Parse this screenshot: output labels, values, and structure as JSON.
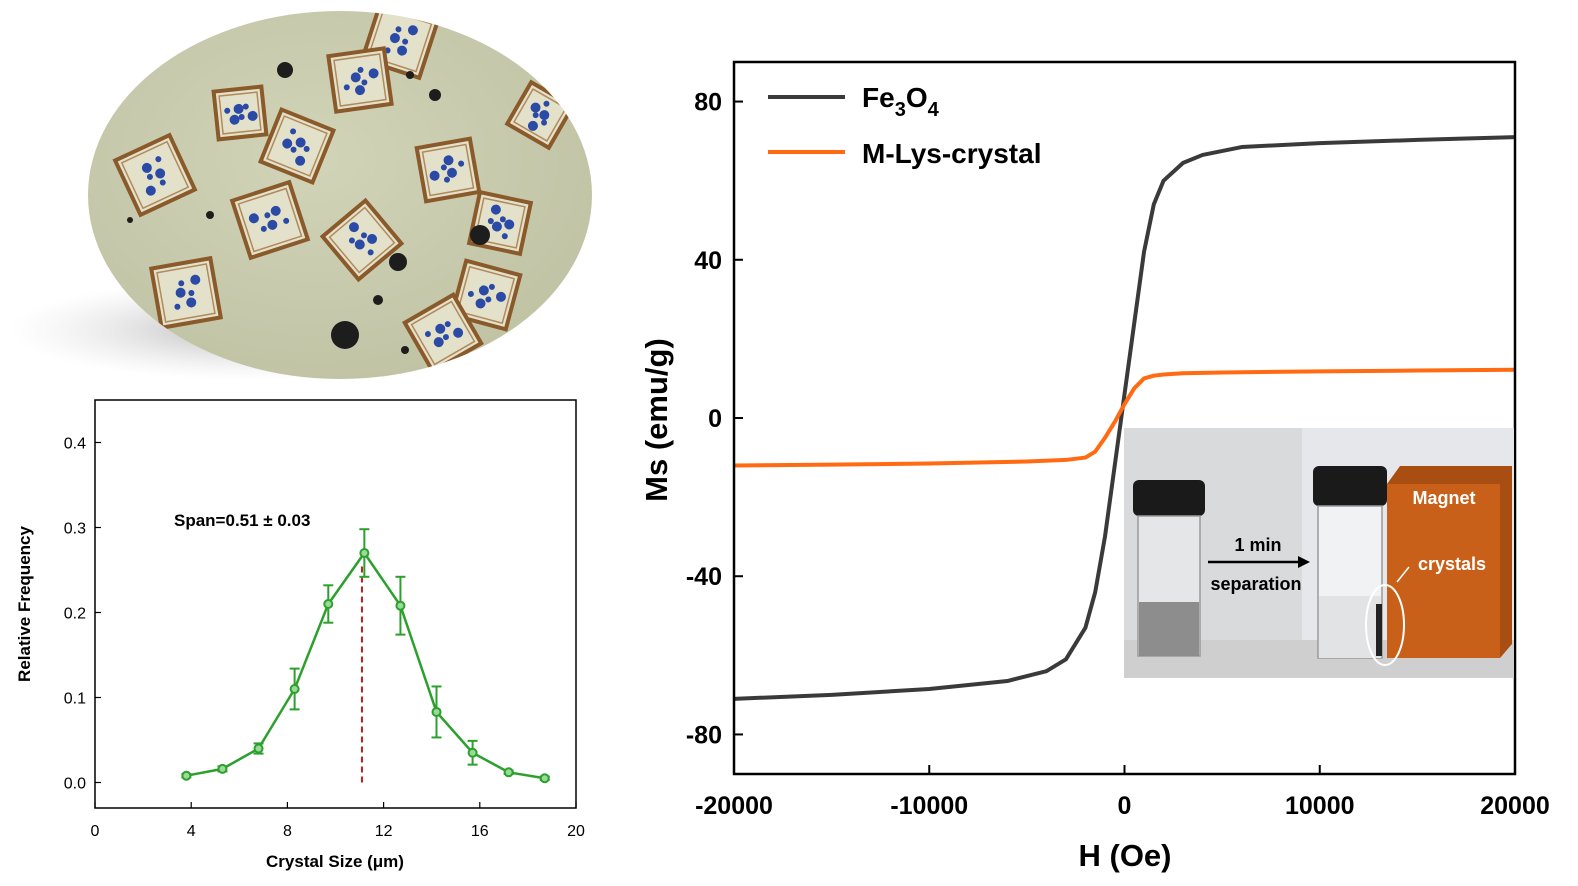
{
  "colors": {
    "fe3o4": "#3a3a3a",
    "mlys": "#ff6a13",
    "size_dist": "#2ca02c",
    "peak_line": "#b22222",
    "micrograph_bg": "#c8cbae",
    "crystal_edge": "#8a5a2b",
    "crystal_stain": "#2b4aa6",
    "magnet": "#c9601a"
  },
  "micrograph": {
    "icon": "crystal-micrograph-photo"
  },
  "inset_photo": {
    "arrow_top_label": "1 min",
    "arrow_bottom_label": "separation",
    "magnet_label": "Magnet",
    "crystals_label": "crystals"
  },
  "chart_data": [
    {
      "type": "line",
      "xlabel": "Crystal Size (μm)",
      "ylabel": "Relative Frequency",
      "xlim": [
        0,
        20
      ],
      "ylim": [
        -0.03,
        0.45
      ],
      "xticks": [
        0,
        4,
        8,
        12,
        16,
        20
      ],
      "yticks": [
        0.0,
        0.1,
        0.2,
        0.3,
        0.4
      ],
      "annotation": "Span=0.51 ± 0.03",
      "peak_marker_x": 11.1,
      "grid": false,
      "series": [
        {
          "x": [
            3.8,
            5.3,
            6.8,
            8.3,
            9.7,
            11.2,
            12.7,
            14.2,
            15.7,
            17.2,
            18.7
          ],
          "y": [
            0.008,
            0.016,
            0.04,
            0.11,
            0.21,
            0.27,
            0.208,
            0.083,
            0.035,
            0.012,
            0.005
          ],
          "err": [
            0.002,
            0.003,
            0.006,
            0.024,
            0.022,
            0.028,
            0.034,
            0.03,
            0.014,
            0.002,
            0.002
          ]
        }
      ]
    },
    {
      "type": "line",
      "xlabel": "H (Oe)",
      "ylabel": "Ms (emu/g)",
      "xlim": [
        -20000,
        20000
      ],
      "ylim": [
        -90,
        90
      ],
      "xticks": [
        -20000,
        -10000,
        0,
        10000,
        20000
      ],
      "yticks": [
        -80,
        -40,
        0,
        40,
        80
      ],
      "grid": false,
      "legend_position": "top-left",
      "series": [
        {
          "name": "Fe3O4",
          "name_main": "Fe",
          "name_sub1": "3",
          "name_mid": "O",
          "name_sub2": "4",
          "x": [
            -20000,
            -15000,
            -10000,
            -6000,
            -4000,
            -3000,
            -2000,
            -1500,
            -1000,
            -500,
            0,
            500,
            1000,
            1500,
            2000,
            3000,
            4000,
            6000,
            10000,
            15000,
            20000
          ],
          "y": [
            -71,
            -70,
            -68.5,
            -66.5,
            -64,
            -61,
            -53,
            -44,
            -30,
            -12,
            6,
            24,
            42,
            54,
            60,
            64.5,
            66.5,
            68.5,
            69.5,
            70.3,
            71
          ]
        },
        {
          "name": "M-Lys-crystal",
          "x": [
            -20000,
            -15000,
            -10000,
            -5000,
            -3000,
            -2000,
            -1500,
            -1000,
            -500,
            0,
            500,
            1000,
            1500,
            2000,
            3000,
            5000,
            10000,
            15000,
            20000
          ],
          "y": [
            -12,
            -11.8,
            -11.5,
            -11,
            -10.6,
            -10,
            -8.5,
            -5,
            -1,
            3.5,
            7.5,
            10,
            10.7,
            11,
            11.3,
            11.5,
            11.8,
            12,
            12.2
          ]
        }
      ]
    }
  ]
}
